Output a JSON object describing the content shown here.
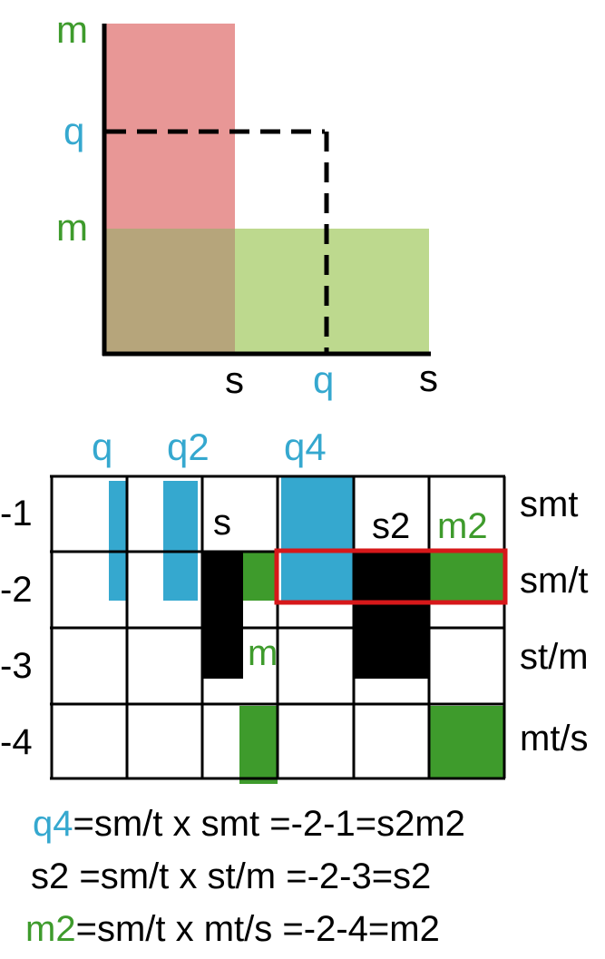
{
  "colors": {
    "blue": "#35a8cf",
    "green": "#3e9b2c",
    "light_green": "#bdd98e",
    "pink": "#e89796",
    "overlap": "#b6a57b",
    "red": "#d6181a"
  },
  "top_plot": {
    "y_labels": [
      "m",
      "q",
      "m"
    ],
    "x_labels": [
      "s",
      "q",
      "s"
    ]
  },
  "grid": {
    "column_labels": [
      "q",
      "q2",
      "q4"
    ],
    "row_numbers": [
      "-1",
      "-2",
      "-3",
      "-4"
    ],
    "row_names": [
      "smt",
      "sm/t",
      "st/m",
      "mt/s"
    ],
    "cell_labels": {
      "s": "s",
      "s2": "s2",
      "m2": "m2",
      "m": "m"
    }
  },
  "equations": [
    {
      "lhs": "q4",
      "op1": "=",
      "term1": "sm/t",
      "x": "x",
      "term2": "smt",
      "rhs": "=-2-1=s2m2"
    },
    {
      "lhs": "s2",
      "op1": "=",
      "term1": "sm/t",
      "x": "x",
      "term2": "st/m",
      "rhs": "=-2-3=s2"
    },
    {
      "lhs": "m2",
      "op1": "=",
      "term1": "sm/t",
      "x": "x",
      "term2": "mt/s",
      "rhs": "=-2-4=m2"
    }
  ]
}
